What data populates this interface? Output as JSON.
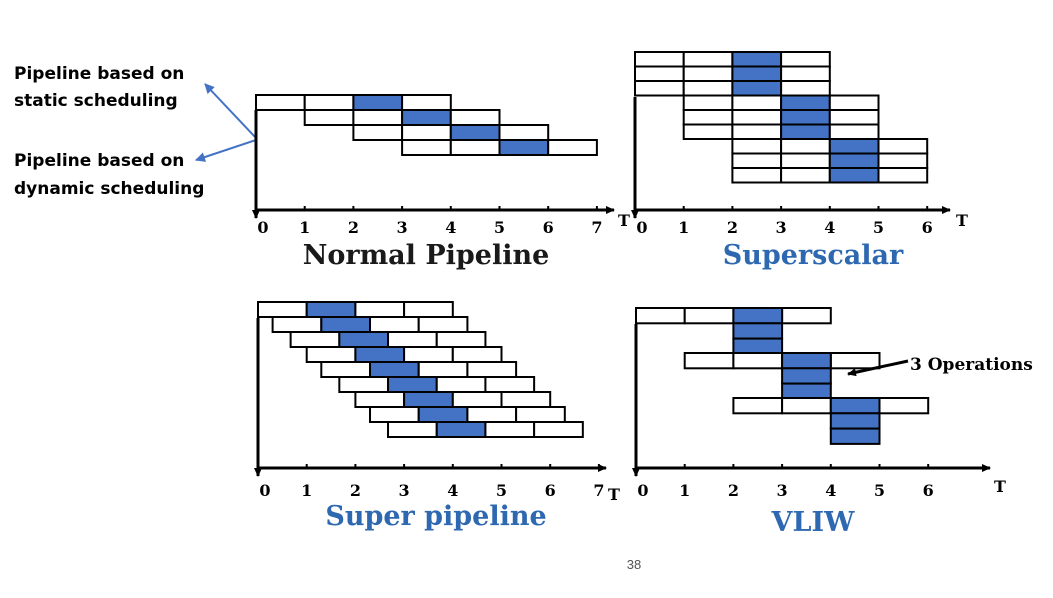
{
  "colors": {
    "stage_fill": "#ffffff",
    "highlight_fill": "#4472c4",
    "stroke": "#000000",
    "note_arrow": "#4472c4",
    "title_dark": "#1a1a1a",
    "title_blue": "#2e68b0"
  },
  "notes": {
    "static": [
      "Pipeline based on",
      "static scheduling"
    ],
    "dynamic": [
      "Pipeline based on",
      "dynamic scheduling"
    ]
  },
  "diagrams": [
    {
      "id": "normal",
      "title": "Normal Pipeline",
      "title_color": "dark",
      "axis_labels": [
        "0",
        "1",
        "2",
        "3",
        "4",
        "5",
        "6",
        "7"
      ],
      "axis_unit": "T",
      "instructions": [
        {
          "start": 0,
          "stages": 4,
          "rows": 1,
          "exec": 2
        },
        {
          "start": 1,
          "stages": 4,
          "rows": 1,
          "exec": 2
        },
        {
          "start": 2,
          "stages": 4,
          "rows": 1,
          "exec": 2
        },
        {
          "start": 3,
          "stages": 4,
          "rows": 1,
          "exec": 2
        }
      ]
    },
    {
      "id": "superscalar",
      "title": "Superscalar",
      "title_color": "blue",
      "axis_labels": [
        "0",
        "1",
        "2",
        "3",
        "4",
        "5",
        "6"
      ],
      "axis_unit": "T",
      "instructions": [
        {
          "start": 0,
          "stages": 4,
          "rows": 3,
          "exec": 2
        },
        {
          "start": 1,
          "stages": 4,
          "rows": 3,
          "exec": 2
        },
        {
          "start": 2,
          "stages": 4,
          "rows": 3,
          "exec": 2
        }
      ]
    },
    {
      "id": "superpipe",
      "title": "Super pipeline",
      "title_color": "blue",
      "axis_labels": [
        "0",
        "1",
        "2",
        "3",
        "4",
        "5",
        "6",
        "7"
      ],
      "axis_unit": "T",
      "instructions": [
        {
          "start": 0
        },
        {
          "start": 0.3
        },
        {
          "start": 0.67
        },
        {
          "start": 1
        },
        {
          "start": 1.3
        },
        {
          "start": 1.67
        },
        {
          "start": 2
        },
        {
          "start": 2.3
        },
        {
          "start": 2.67
        }
      ]
    },
    {
      "id": "vliw",
      "title": "VLIW",
      "title_color": "blue",
      "axis_labels": [
        "0",
        "1",
        "2",
        "3",
        "4",
        "5",
        "6"
      ],
      "axis_unit": "T",
      "callout": "3 Operations",
      "instructions": [
        {
          "start": 0,
          "stages": 4,
          "rows": 3,
          "exec": 2
        },
        {
          "start": 1,
          "stages": 4,
          "rows": 3,
          "exec": 2
        },
        {
          "start": 2,
          "stages": 4,
          "rows": 3,
          "exec": 2
        }
      ]
    }
  ],
  "page_number": "38"
}
